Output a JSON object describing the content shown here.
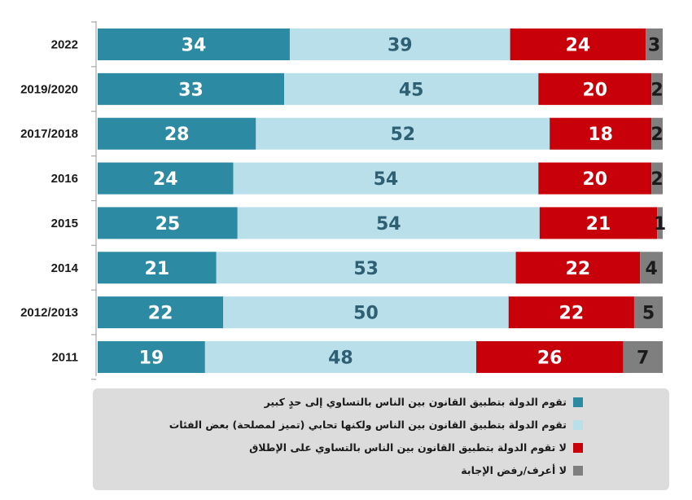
{
  "chart_data": {
    "type": "bar",
    "orientation": "horizontal",
    "stacked": true,
    "normalized": true,
    "categories": [
      "2022",
      "2019/2020",
      "2017/2018",
      "2016",
      "2015",
      "2014",
      "2012/2013",
      "2011"
    ],
    "series": [
      {
        "name": "تقوم الدولة بتطبيق القانون بين الناس بالتساوي إلى حدٍ كبير",
        "color": "#2d8aa3",
        "label_color": "#ffffff",
        "values": [
          34,
          33,
          28,
          24,
          25,
          21,
          22,
          19
        ]
      },
      {
        "name": "تقوم الدولة بتطبيق القانون بين الناس ولكنها تحابي (تميز لمصلحة) بعض الفئات",
        "color": "#b9dfea",
        "label_color": "#2e5f73",
        "values": [
          39,
          45,
          52,
          54,
          54,
          53,
          50,
          48
        ]
      },
      {
        "name": "لا تقوم الدولة بتطبيق القانون بين الناس بالتساوي على الإطلاق",
        "color": "#c8000a",
        "label_color": "#ffffff",
        "values": [
          24,
          20,
          18,
          20,
          21,
          22,
          22,
          26
        ]
      },
      {
        "name": "لا أعرف/رفض الإجابة",
        "color": "#7f7f7f",
        "label_color": "#1a1a1a",
        "values": [
          3,
          2,
          2,
          2,
          1,
          4,
          5,
          7
        ]
      }
    ],
    "xlim": [
      0,
      100
    ],
    "legend_position": "bottom"
  }
}
